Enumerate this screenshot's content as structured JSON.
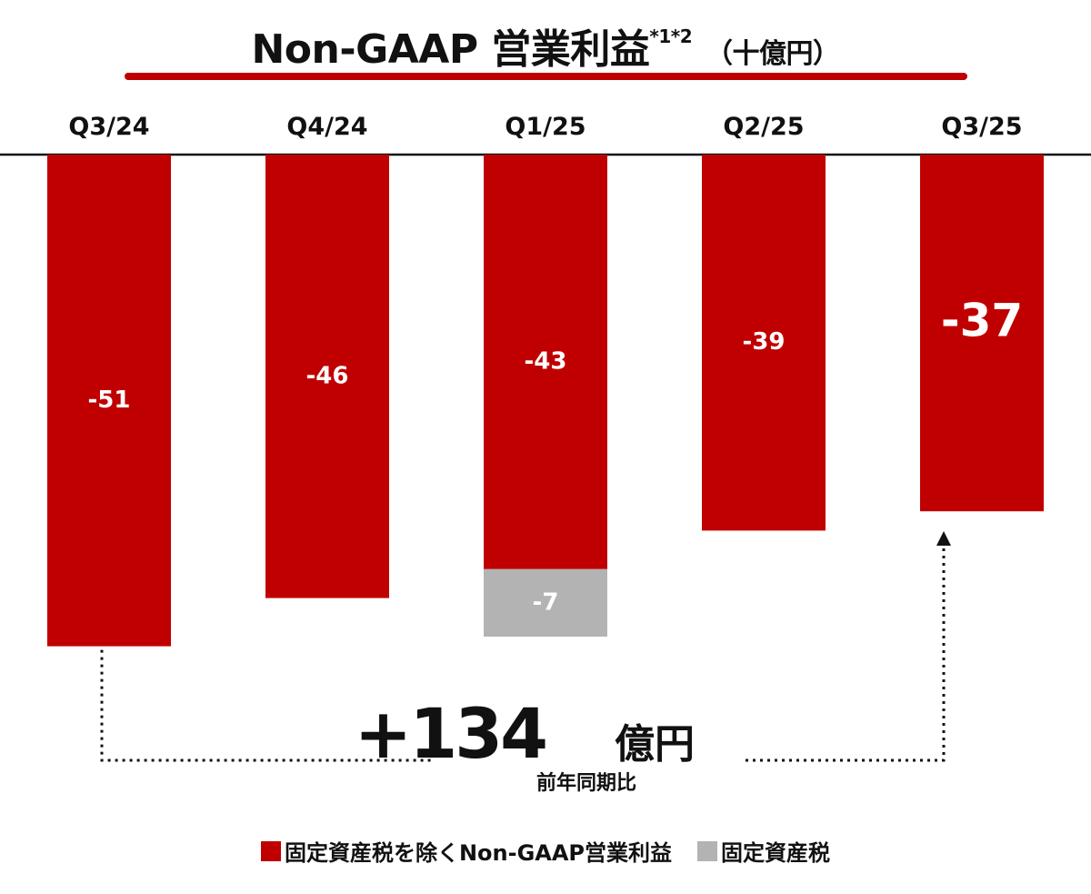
{
  "title": {
    "main": "Non-GAAP 営業利益",
    "superscript": "*1*2",
    "unit": "（十億円）"
  },
  "colors": {
    "primary": "#c00000",
    "secondary": "#b3b3b3",
    "axis": "#111111"
  },
  "chart_data": {
    "type": "bar",
    "stacked": true,
    "categories": [
      "Q3/24",
      "Q4/24",
      "Q1/25",
      "Q2/25",
      "Q3/25"
    ],
    "series": [
      {
        "name": "固定資産税を除くNon-GAAP営業利益",
        "values": [
          -51,
          -46,
          -43,
          -39,
          -37
        ],
        "labels": [
          "-51",
          "-46",
          "-43",
          "-39",
          "-37"
        ]
      },
      {
        "name": "固定資産税",
        "values": [
          0,
          0,
          -7,
          0,
          0
        ],
        "labels": [
          "",
          "",
          "-7",
          "",
          ""
        ]
      }
    ],
    "ylim": [
      -60,
      0
    ],
    "grid": false,
    "legend_position": "bottom"
  },
  "annotation": {
    "value": "+134",
    "unit": "億円",
    "note": "前年同期比"
  }
}
